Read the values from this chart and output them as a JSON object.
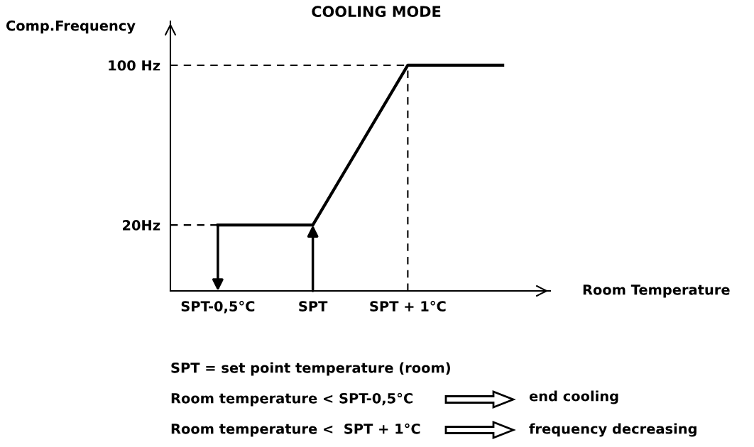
{
  "chart_data": {
    "type": "line",
    "title": "COOLING MODE",
    "xlabel": "Room Temperature",
    "ylabel": "Comp.Frequency",
    "categories": [
      "SPT-0,5°C",
      "SPT",
      "SPT + 1°C",
      null
    ],
    "ylim": [
      -13,
      122
    ],
    "yticks": [
      {
        "value": 20,
        "label": "20Hz"
      },
      {
        "value": 100,
        "label": "100 Hz"
      }
    ],
    "series": [
      {
        "color": "#000000",
        "values": [
          20,
          20,
          100,
          100
        ]
      }
    ],
    "ref_lines": [
      {
        "axis": "y",
        "value": 20,
        "line_style": "dashed",
        "color": "#000000"
      },
      {
        "axis": "y",
        "value": 100,
        "line_style": "dashed",
        "color": "#000000"
      },
      {
        "axis": "x",
        "value": "SPT + 1°C",
        "line_style": "dashed",
        "color": "#000000"
      }
    ],
    "annotations": [
      "SPT = set point temperature (room)",
      "Room temperature < SPT-0,5°C",
      "end cooling",
      "Room temperature <  SPT + 1°C",
      "frequency decreasing"
    ],
    "grid": false,
    "line_style": "solid",
    "marker": "none"
  }
}
